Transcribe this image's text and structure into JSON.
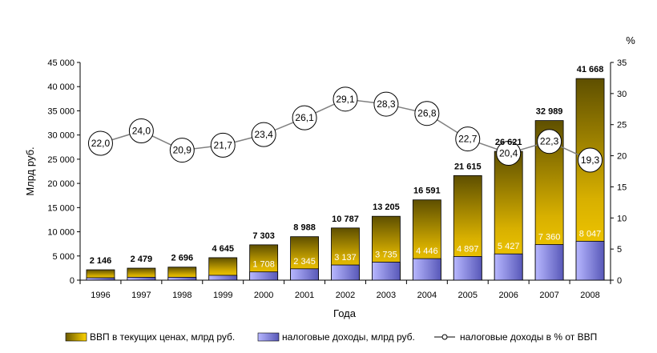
{
  "chart_data": {
    "type": "bar",
    "categories": [
      "1996",
      "1997",
      "1998",
      "1999",
      "2000",
      "2001",
      "2002",
      "2003",
      "2004",
      "2005",
      "2006",
      "2007",
      "2008"
    ],
    "xlabel": "Года",
    "ylabel": "Млрд руб.",
    "y2label": "%",
    "ylim": [
      0,
      45000
    ],
    "y2lim": [
      0,
      35
    ],
    "yticks": [
      "0",
      "5 000",
      "10 000",
      "15 000",
      "20 000",
      "25 000",
      "30 000",
      "35 000",
      "40 000",
      "45 000"
    ],
    "y2ticks": [
      "0",
      "5",
      "10",
      "15",
      "20",
      "25",
      "30",
      "35"
    ],
    "series": [
      {
        "name": "ВВП в текущих ценах, млрд руб.",
        "type": "bar",
        "values": [
          2146,
          2479,
          2696,
          4645,
          7303,
          8988,
          10787,
          13205,
          16591,
          21615,
          26621,
          32989,
          41668
        ],
        "labels": [
          "2 146",
          "2 479",
          "2 696",
          "4 645",
          "7 303",
          "8 988",
          "10 787",
          "13 205",
          "16 591",
          "21 615",
          "26 621",
          "32 989",
          "41 668"
        ]
      },
      {
        "name": "налоговые доходы, млрд руб.",
        "type": "bar",
        "values": [
          500,
          600,
          600,
          1000,
          1708,
          2345,
          3137,
          3735,
          4446,
          4897,
          5427,
          7360,
          8047
        ],
        "labels": [
          "",
          "",
          "",
          "",
          "1 708",
          "2 345",
          "3 137",
          "3 735",
          "4 446",
          "4 897",
          "5 427",
          "7 360",
          "8 047"
        ]
      },
      {
        "name": "налоговые доходы в % от ВВП",
        "type": "line",
        "axis": "right",
        "values": [
          22.0,
          24.0,
          20.9,
          21.7,
          23.4,
          26.1,
          29.1,
          28.3,
          26.8,
          22.7,
          20.4,
          22.3,
          19.3
        ],
        "labels": [
          "22,0",
          "24,0",
          "20,9",
          "21,7",
          "23,4",
          "26,1",
          "29,1",
          "28,3",
          "26,8",
          "22,7",
          "20,4",
          "22,3",
          "19,3"
        ]
      }
    ],
    "legend_position": "bottom",
    "colors": {
      "gdp_bottom": "#ffd400",
      "gdp_top": "#6b5a00",
      "tax_light": "#b7b7ff",
      "tax_dark": "#5858b8",
      "line": "#808080"
    }
  }
}
